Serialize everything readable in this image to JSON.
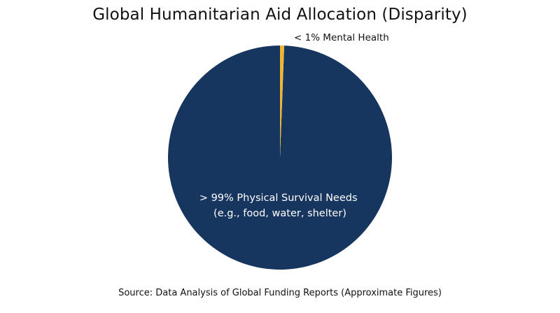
{
  "chart_data": {
    "type": "pie",
    "title": "Global Humanitarian Aid Allocation (Disparity)",
    "slices": [
      {
        "label": "< 1% Mental Health",
        "value": 1,
        "color": "#F0B533"
      },
      {
        "label_lines": [
          "> 99% Physical Survival Needs",
          "(e.g., food, water, shelter)"
        ],
        "value": 99,
        "color": "#17365F"
      }
    ],
    "source": "Source: Data Analysis of Global Funding Reports (Approximate Figures)"
  }
}
